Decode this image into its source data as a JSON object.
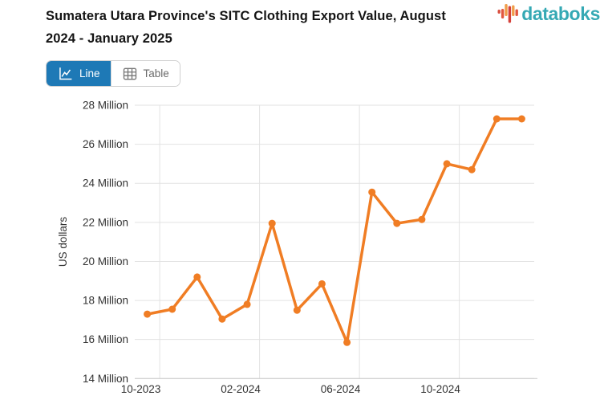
{
  "header": {
    "title_lines": [
      "Sumatera Utara Province's SITC Clothing Export Value, August",
      "2024 - January 2025"
    ],
    "brand": {
      "name": "databoks",
      "text_color": "#35a9b4",
      "bar_colors": [
        "#d95040",
        "#e2573f",
        "#f09d4a",
        "#d5413a",
        "#f09d4a",
        "#e2573f"
      ]
    }
  },
  "toolbar": {
    "line_label": "Line",
    "table_label": "Table",
    "active": "Line",
    "active_color": "#1e79b6"
  },
  "chart_data": {
    "type": "line",
    "x": [
      "10-2023",
      "11-2023",
      "12-2023",
      "01-2024",
      "02-2024",
      "03-2024",
      "04-2024",
      "05-2024",
      "06-2024",
      "07-2024",
      "08-2024",
      "09-2024",
      "10-2024",
      "11-2024",
      "12-2024",
      "01-2025"
    ],
    "values": [
      17.3,
      17.55,
      19.2,
      17.05,
      17.8,
      21.95,
      17.5,
      18.85,
      15.85,
      23.55,
      21.95,
      22.15,
      25.0,
      24.7,
      27.3,
      27.3
    ],
    "unit": "million US dollars",
    "ylabel": "US dollars",
    "yticks": [
      14,
      16,
      18,
      20,
      22,
      24,
      26,
      28
    ],
    "ytick_suffix": " Million",
    "ylim": [
      14,
      28
    ],
    "xtick_indices": [
      0,
      4,
      8,
      12
    ],
    "xtick_labels": [
      "10-2023",
      "02-2024",
      "06-2024",
      "10-2024"
    ],
    "line_color": "#f07d24",
    "grid": true,
    "legend": "none"
  }
}
